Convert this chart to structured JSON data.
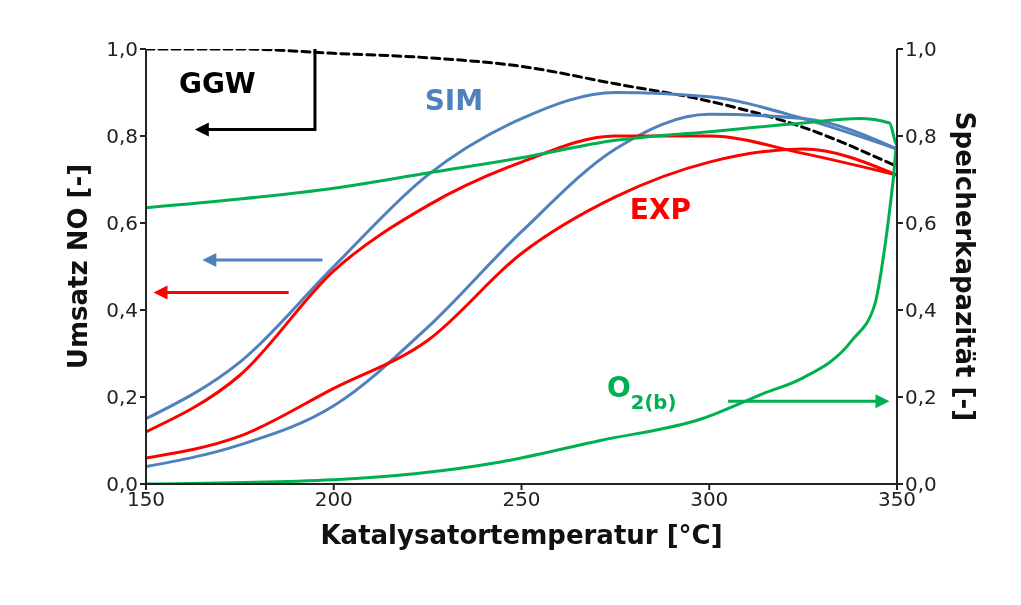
{
  "chart_data": {
    "type": "line",
    "xlabel": "Katalysatortemperatur [°C]",
    "ylabel": "Umsatz NO [-]",
    "y2label": "Speicherkapazität [-]",
    "xlim": [
      150,
      350
    ],
    "xticks": [
      150,
      200,
      250,
      300,
      350
    ],
    "ylim": [
      0,
      1
    ],
    "yticks": [
      {
        "value": 0,
        "label": "0,0"
      },
      {
        "value": 0.2,
        "label": "0,2"
      },
      {
        "value": 0.4,
        "label": "0,4"
      },
      {
        "value": 0.6,
        "label": "0,6"
      },
      {
        "value": 0.8,
        "label": "0,8"
      },
      {
        "value": 1,
        "label": "1,0"
      }
    ],
    "y2lim": [
      0,
      1
    ],
    "y2ticks": [
      {
        "value": 0,
        "label": "0,0"
      },
      {
        "value": 0.2,
        "label": "0,2"
      },
      {
        "value": 0.4,
        "label": "0,4"
      },
      {
        "value": 0.6,
        "label": "0,6"
      },
      {
        "value": 0.8,
        "label": "0,8"
      },
      {
        "value": 1,
        "label": "1,0"
      }
    ],
    "marker": "none",
    "series": [
      {
        "name": "GGW",
        "color": "#000000",
        "line_style": "dashed",
        "x": [
          150,
          175,
          200,
          225,
          250,
          275,
          300,
          325,
          350
        ],
        "values": [
          1.0,
          1.0,
          0.99,
          0.98,
          0.96,
          0.92,
          0.88,
          0.82,
          0.73
        ]
      },
      {
        "name": "SIM",
        "color": "#4f81bd",
        "line_style": "solid",
        "x": [
          150,
          175,
          200,
          225,
          250,
          275,
          300,
          325,
          350
        ],
        "values": [
          0.15,
          0.28,
          0.5,
          0.71,
          0.84,
          0.9,
          0.89,
          0.84,
          0.77
        ]
      },
      {
        "color": "#4f81bd",
        "line_style": "solid",
        "x": [
          150,
          175,
          200,
          225,
          250,
          275,
          300,
          325,
          350
        ],
        "values": [
          0.04,
          0.09,
          0.18,
          0.36,
          0.58,
          0.77,
          0.85,
          0.84,
          0.77
        ]
      },
      {
        "name": "EXP",
        "color": "#ff0000",
        "line_style": "solid",
        "x": [
          150,
          175,
          200,
          225,
          250,
          275,
          300,
          325,
          350
        ],
        "values": [
          0.12,
          0.25,
          0.49,
          0.64,
          0.74,
          0.8,
          0.8,
          0.76,
          0.71
        ]
      },
      {
        "color": "#ff0000",
        "line_style": "solid",
        "x": [
          150,
          175,
          200,
          225,
          250,
          275,
          300,
          325,
          350
        ],
        "values": [
          0.06,
          0.11,
          0.22,
          0.33,
          0.53,
          0.66,
          0.74,
          0.77,
          0.71
        ]
      },
      {
        "name": "O$_{2(b)}$",
        "color": "#00b050",
        "line_style": "solid",
        "axis": "y2",
        "x": [
          150,
          175,
          200,
          225,
          250,
          275,
          300,
          325,
          340,
          348,
          350,
          349,
          347,
          344,
          338,
          324,
          315,
          298,
          271,
          244,
          200,
          150
        ],
        "values": [
          0.635,
          0.655,
          0.68,
          0.715,
          0.75,
          0.79,
          0.81,
          0.83,
          0.84,
          0.83,
          0.78,
          0.7,
          0.56,
          0.41,
          0.33,
          0.24,
          0.21,
          0.15,
          0.1,
          0.05,
          0.01,
          0
        ]
      }
    ]
  }
}
